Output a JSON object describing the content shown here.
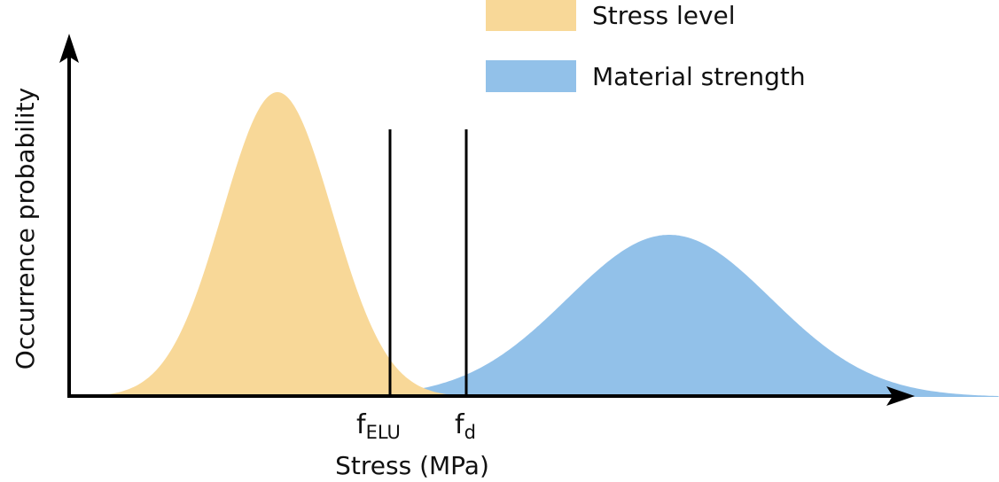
{
  "diagram": {
    "x_axis_label": "Stress (MPa)",
    "y_axis_label": "Occurrence probability",
    "legend": {
      "stress": "Stress level",
      "strength": "Material strength"
    },
    "markers": {
      "elu_base": "f",
      "elu_sub": "ELU",
      "d_base": "f",
      "d_sub": "d"
    },
    "colors": {
      "stress_fill": "#F8D898",
      "strength_fill": "#92C1E9",
      "axis": "#000000"
    }
  }
}
